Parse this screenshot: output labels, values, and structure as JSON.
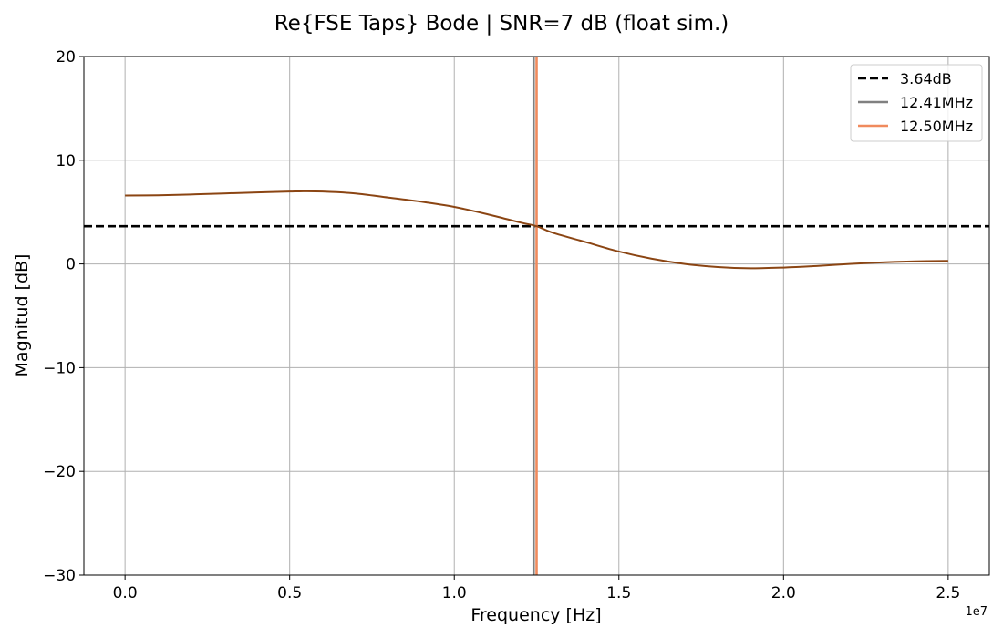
{
  "chart_data": {
    "type": "line",
    "title": "Re{FSE Taps} Bode | SNR=7 dB (float sim.)",
    "xlabel": "Frequency [Hz]",
    "ylabel": "Magnitud [dB]",
    "x_offset_label": "1e7",
    "xlim": [
      -1250000,
      26250000
    ],
    "ylim": [
      -30,
      20
    ],
    "xticks": [
      0,
      5000000,
      10000000,
      15000000,
      20000000,
      25000000
    ],
    "xtick_labels": [
      "0.0",
      "0.5",
      "1.0",
      "1.5",
      "2.0",
      "2.5"
    ],
    "yticks": [
      -30,
      -20,
      -10,
      0,
      10,
      20
    ],
    "ytick_labels": [
      "−30",
      "−20",
      "−10",
      "0",
      "10",
      "20"
    ],
    "grid": true,
    "legend_position": "top-right",
    "series": [
      {
        "color": "#8B4513",
        "x": [
          0,
          1000000,
          2000000,
          3000000,
          4000000,
          5000000,
          5300000,
          6000000,
          7000000,
          8000000,
          9000000,
          10000000,
          11000000,
          12000000,
          12500000,
          13000000,
          14000000,
          15000000,
          16000000,
          17000000,
          18000000,
          19000000,
          20000000,
          21000000,
          22000000,
          23000000,
          24000000,
          25000000
        ],
        "y": [
          6.6,
          6.62,
          6.7,
          6.8,
          6.9,
          6.98,
          7.0,
          6.98,
          6.8,
          6.4,
          6.0,
          5.5,
          4.8,
          4.0,
          3.64,
          3.0,
          2.1,
          1.2,
          0.5,
          0.0,
          -0.3,
          -0.42,
          -0.35,
          -0.2,
          0.0,
          0.15,
          0.25,
          0.3
        ]
      }
    ],
    "lines": [
      {
        "orientation": "horizontal",
        "value": 3.64,
        "label": "3.64dB",
        "color": "#000000",
        "style": "dashed"
      },
      {
        "orientation": "vertical",
        "value": 12410000,
        "label": "12.41MHz",
        "color": "#808080",
        "style": "solid"
      },
      {
        "orientation": "vertical",
        "value": 12500000,
        "label": "12.50MHz",
        "color": "#F08A5D",
        "style": "solid"
      }
    ]
  }
}
